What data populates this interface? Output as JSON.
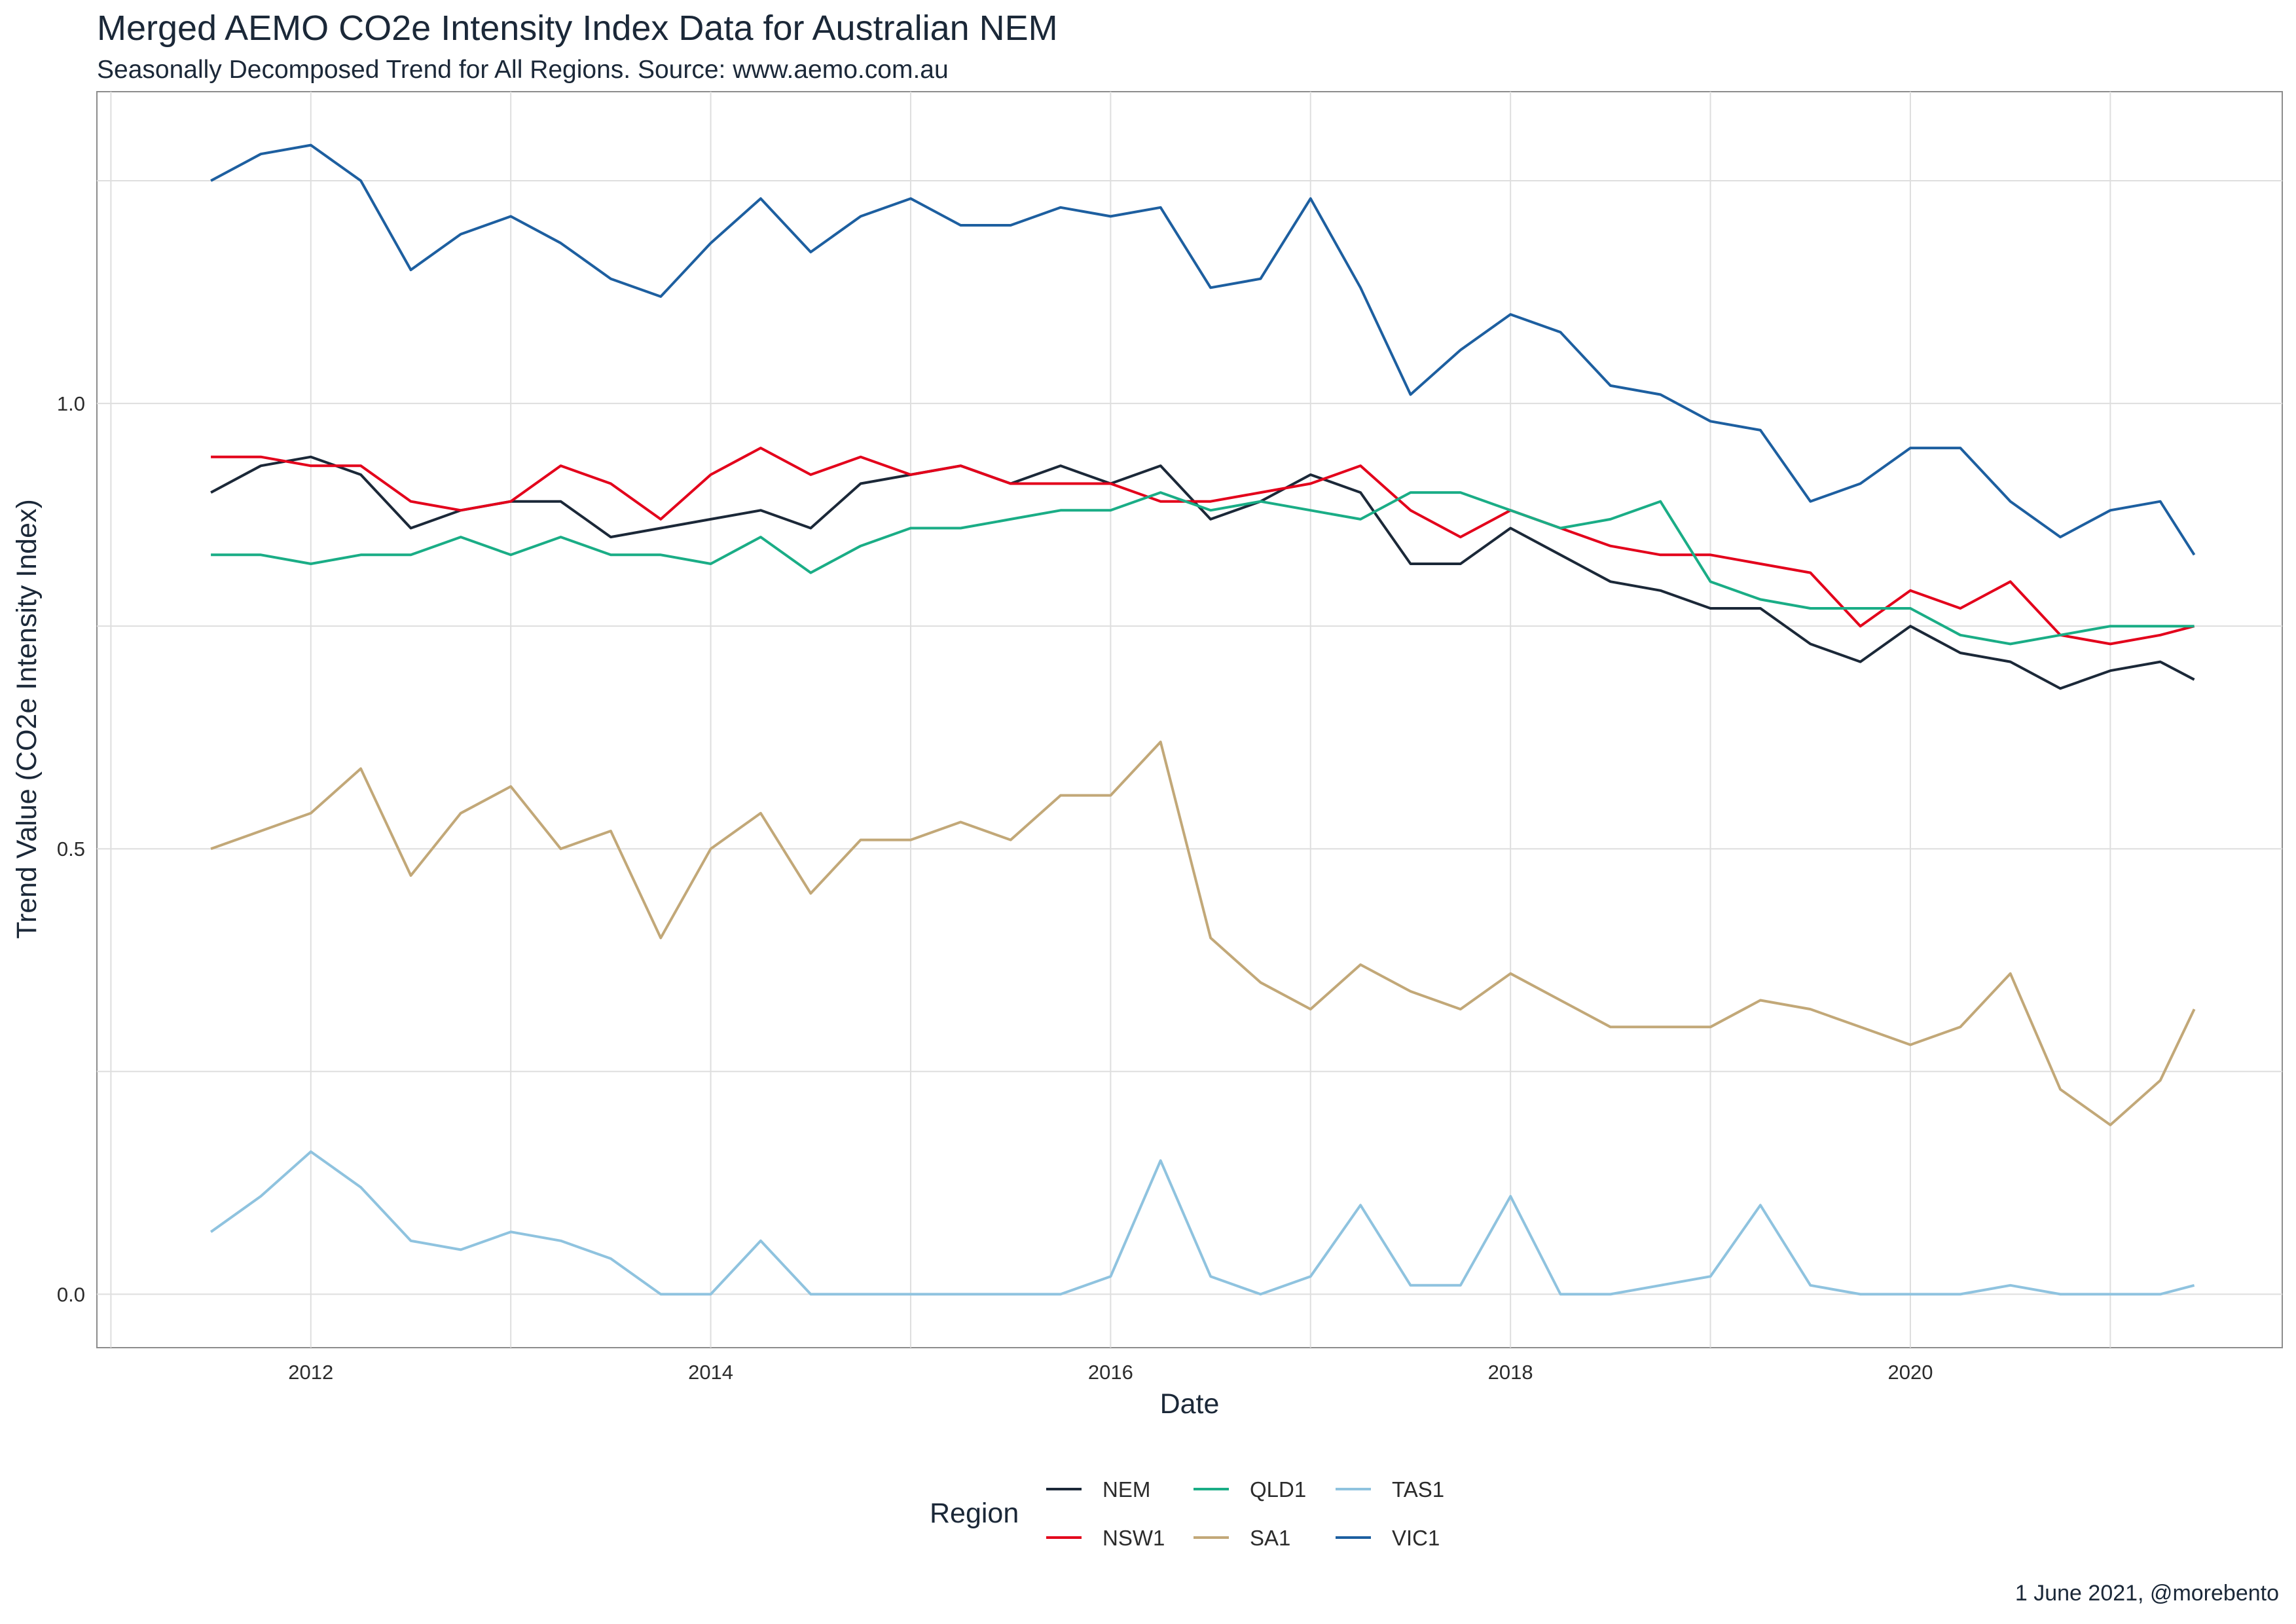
{
  "header": {
    "title": "Merged AEMO CO2e Intensity Index Data for Australian NEM",
    "subtitle": "Seasonally Decomposed Trend for All Regions. Source: www.aemo.com.au"
  },
  "caption": "1 June 2021, @morebento",
  "chart_data": {
    "type": "line",
    "title": "Merged AEMO CO2e Intensity Index Data for Australian NEM",
    "subtitle": "Seasonally Decomposed Trend for All Regions. Source: www.aemo.com.au",
    "xlabel": "Date",
    "ylabel": "Trend Value (CO2e Intensity Index)",
    "x_ticks": [
      "2012",
      "2014",
      "2016",
      "2018",
      "2020"
    ],
    "x_tick_values": [
      2012,
      2014,
      2016,
      2018,
      2020
    ],
    "y_ticks": [
      "0.0",
      "0.5",
      "1.0"
    ],
    "y_tick_values": [
      0.0,
      0.5,
      1.0
    ],
    "xlim": [
      2010.93,
      2021.86
    ],
    "ylim": [
      -0.06,
      1.35
    ],
    "grid": true,
    "legend": {
      "title": "Region",
      "position": "bottom"
    },
    "x": [
      2011.5,
      2011.75,
      2012.0,
      2012.25,
      2012.5,
      2012.75,
      2013.0,
      2013.25,
      2013.5,
      2013.75,
      2014.0,
      2014.25,
      2014.5,
      2014.75,
      2015.0,
      2015.25,
      2015.5,
      2015.75,
      2016.0,
      2016.25,
      2016.5,
      2016.75,
      2017.0,
      2017.25,
      2017.5,
      2017.75,
      2018.0,
      2018.25,
      2018.5,
      2018.75,
      2019.0,
      2019.25,
      2019.5,
      2019.75,
      2020.0,
      2020.25,
      2020.5,
      2020.75,
      2021.0,
      2021.25,
      2021.42
    ],
    "series": [
      {
        "name": "NEM",
        "color": "#1b2838",
        "values": [
          0.9,
          0.93,
          0.94,
          0.92,
          0.86,
          0.88,
          0.89,
          0.89,
          0.85,
          0.86,
          0.87,
          0.88,
          0.86,
          0.91,
          0.92,
          0.93,
          0.91,
          0.93,
          0.91,
          0.93,
          0.87,
          0.89,
          0.92,
          0.9,
          0.82,
          0.82,
          0.86,
          0.83,
          0.8,
          0.79,
          0.77,
          0.77,
          0.73,
          0.71,
          0.75,
          0.72,
          0.71,
          0.68,
          0.7,
          0.71,
          0.69
        ]
      },
      {
        "name": "NSW1",
        "color": "#e3001b",
        "values": [
          0.94,
          0.94,
          0.93,
          0.93,
          0.89,
          0.88,
          0.89,
          0.93,
          0.91,
          0.87,
          0.92,
          0.95,
          0.92,
          0.94,
          0.92,
          0.93,
          0.91,
          0.91,
          0.91,
          0.89,
          0.89,
          0.9,
          0.91,
          0.93,
          0.88,
          0.85,
          0.88,
          0.86,
          0.84,
          0.83,
          0.83,
          0.82,
          0.81,
          0.75,
          0.79,
          0.77,
          0.8,
          0.74,
          0.73,
          0.74,
          0.75
        ]
      },
      {
        "name": "QLD1",
        "color": "#1aad86",
        "values": [
          0.83,
          0.83,
          0.82,
          0.83,
          0.83,
          0.85,
          0.83,
          0.85,
          0.83,
          0.83,
          0.82,
          0.85,
          0.81,
          0.84,
          0.86,
          0.86,
          0.87,
          0.88,
          0.88,
          0.9,
          0.88,
          0.89,
          0.88,
          0.87,
          0.9,
          0.9,
          0.88,
          0.86,
          0.87,
          0.89,
          0.8,
          0.78,
          0.77,
          0.77,
          0.77,
          0.74,
          0.73,
          0.74,
          0.75,
          0.75,
          0.75
        ]
      },
      {
        "name": "SA1",
        "color": "#c2a878",
        "values": [
          0.5,
          0.52,
          0.54,
          0.59,
          0.47,
          0.54,
          0.57,
          0.5,
          0.52,
          0.4,
          0.5,
          0.54,
          0.45,
          0.51,
          0.51,
          0.53,
          0.51,
          0.56,
          0.56,
          0.62,
          0.4,
          0.35,
          0.32,
          0.37,
          0.34,
          0.32,
          0.36,
          0.33,
          0.3,
          0.3,
          0.3,
          0.33,
          0.32,
          0.3,
          0.28,
          0.3,
          0.36,
          0.23,
          0.19,
          0.24,
          0.32
        ]
      },
      {
        "name": "TAS1",
        "color": "#8fc3df",
        "values": [
          0.07,
          0.11,
          0.16,
          0.12,
          0.06,
          0.05,
          0.07,
          0.06,
          0.04,
          0.0,
          0.0,
          0.06,
          0.0,
          0.0,
          0.0,
          0.0,
          0.0,
          0.0,
          0.02,
          0.15,
          0.02,
          0.0,
          0.02,
          0.1,
          0.01,
          0.01,
          0.11,
          0.0,
          0.0,
          0.01,
          0.02,
          0.1,
          0.01,
          0.0,
          0.0,
          0.0,
          0.01,
          0.0,
          0.0,
          0.0,
          0.01
        ]
      },
      {
        "name": "VIC1",
        "color": "#1d5fa0",
        "values": [
          1.25,
          1.28,
          1.29,
          1.25,
          1.15,
          1.19,
          1.21,
          1.18,
          1.14,
          1.12,
          1.18,
          1.23,
          1.17,
          1.21,
          1.23,
          1.2,
          1.2,
          1.22,
          1.21,
          1.22,
          1.13,
          1.14,
          1.23,
          1.13,
          1.01,
          1.06,
          1.1,
          1.08,
          1.02,
          1.01,
          0.98,
          0.97,
          0.89,
          0.91,
          0.95,
          0.95,
          0.89,
          0.85,
          0.88,
          0.89,
          0.83
        ]
      }
    ]
  }
}
